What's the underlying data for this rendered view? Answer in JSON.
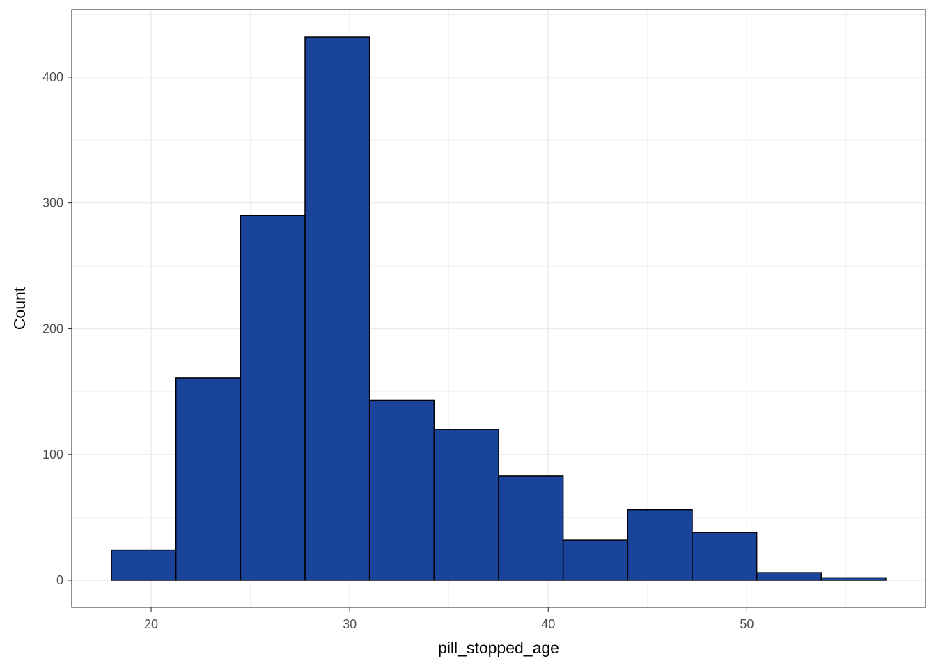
{
  "chart_data": {
    "type": "bar",
    "title": "",
    "xlabel": "pill_stopped_age",
    "ylabel": "Count",
    "bins": [
      {
        "x0": 18.0,
        "x1": 21.25,
        "count": 24
      },
      {
        "x0": 21.25,
        "x1": 24.5,
        "count": 161
      },
      {
        "x0": 24.5,
        "x1": 27.75,
        "count": 290
      },
      {
        "x0": 27.75,
        "x1": 31.0,
        "count": 432
      },
      {
        "x0": 31.0,
        "x1": 34.25,
        "count": 143
      },
      {
        "x0": 34.25,
        "x1": 37.5,
        "count": 120
      },
      {
        "x0": 37.5,
        "x1": 40.75,
        "count": 83
      },
      {
        "x0": 40.75,
        "x1": 44.0,
        "count": 32
      },
      {
        "x0": 44.0,
        "x1": 47.25,
        "count": 56
      },
      {
        "x0": 47.25,
        "x1": 50.5,
        "count": 38
      },
      {
        "x0": 50.5,
        "x1": 53.75,
        "count": 6
      },
      {
        "x0": 53.75,
        "x1": 57.0,
        "count": 2
      }
    ],
    "xlim": [
      16.0,
      59.0
    ],
    "ylim": [
      -21.6,
      453.6
    ],
    "x_ticks": [
      20,
      30,
      40,
      50
    ],
    "y_ticks": [
      0,
      100,
      200,
      300,
      400
    ],
    "grid": true,
    "bar_fill": "#1a449c",
    "bar_outline": "#000000",
    "grid_color": "#ebebeb",
    "panel_border_color": "#333333"
  }
}
